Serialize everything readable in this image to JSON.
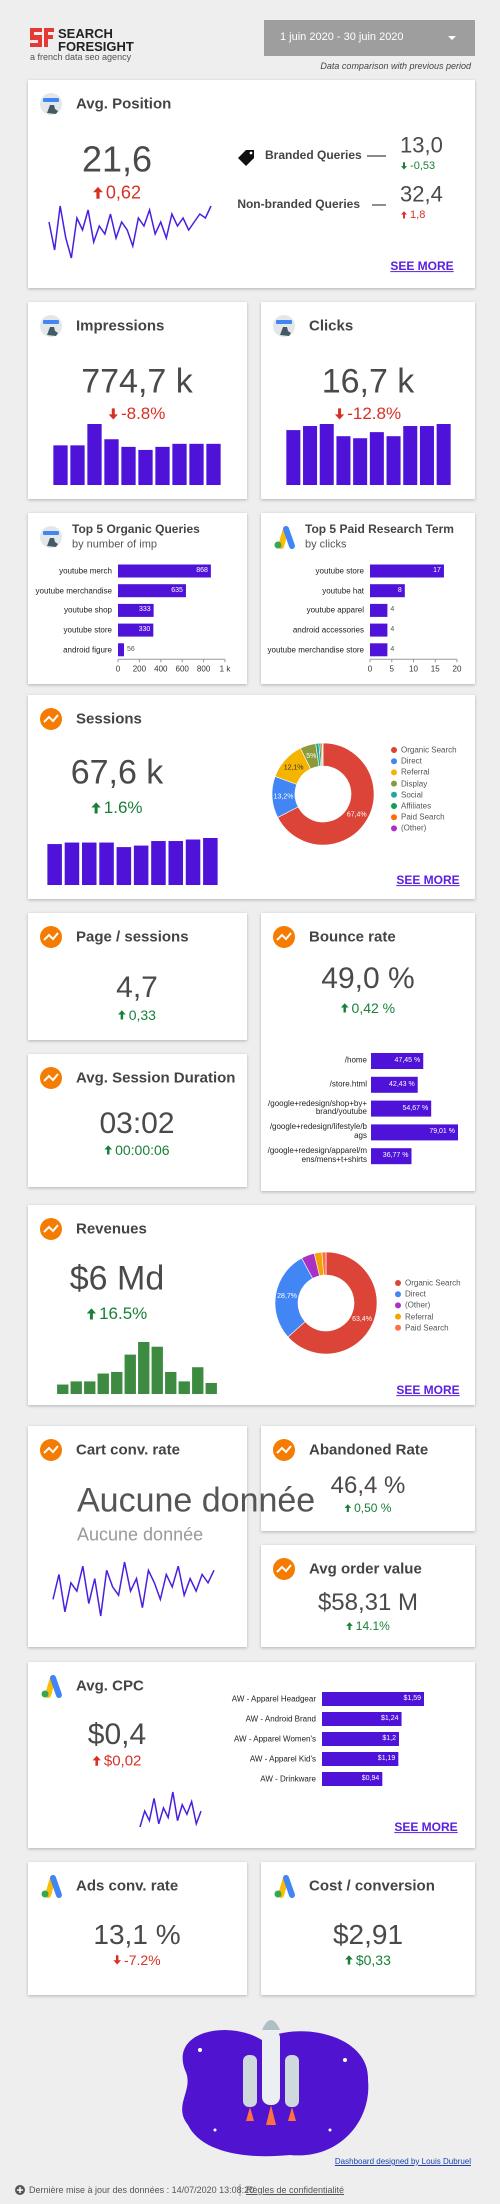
{
  "header": {
    "logo_line1": "SEARCH",
    "logo_line2": "FORESIGHT",
    "tagline": "a french data seo agency",
    "date_range": "1 juin 2020 - 30 juin 2020",
    "comparison_note": "Data comparison with previous period"
  },
  "avg_position": {
    "title": "Avg. Position",
    "value": "21,6",
    "delta": "0,62",
    "delta_direction": "up",
    "delta_color": "#d93025",
    "sparkline": [
      13,
      6,
      17,
      9,
      4,
      14,
      11,
      16,
      8,
      12,
      10,
      15,
      9,
      13,
      11,
      7,
      14,
      12,
      16,
      10,
      13,
      9,
      15,
      12,
      14,
      11,
      13,
      15,
      14,
      17
    ],
    "line_color": "#4a1ee0",
    "queries": [
      {
        "label": "Branded Queries",
        "value": "13,0",
        "delta": "-0,53",
        "delta_direction": "down",
        "delta_color": "#188038"
      },
      {
        "label": "Non-branded Queries",
        "value": "32,4",
        "delta": "1,8",
        "delta_direction": "up",
        "delta_color": "#d93025"
      }
    ],
    "link": "SEE MORE"
  },
  "impressions": {
    "title": "Impressions",
    "value": "774,7 k",
    "delta": "-8.8%",
    "delta_direction": "down",
    "delta_color": "#d93025",
    "bars": [
      26,
      26,
      40,
      30,
      25,
      23,
      25,
      27,
      27,
      27
    ],
    "bar_color": "#4e12d9"
  },
  "clicks": {
    "title": "Clicks",
    "value": "16,7 k",
    "delta": "-12.8%",
    "delta_direction": "down",
    "delta_color": "#d93025",
    "bars": [
      27,
      29,
      30,
      24,
      23,
      26,
      24,
      29,
      29,
      30
    ],
    "bar_color": "#4e12d9"
  },
  "top_organic_queries": {
    "title": "Top 5 Organic Queries",
    "subtitle": "by number of imp",
    "categories": [
      "youtube merch",
      "youtube merchandise",
      "youtube shop",
      "youtube store",
      "android figure"
    ],
    "values": [
      868,
      635,
      333,
      330,
      56
    ],
    "color": "#4e12d9",
    "xlim": [
      0,
      1000
    ],
    "xticks": [
      0,
      200,
      400,
      600,
      800,
      {
        "value": 1000,
        "label": "1 k"
      }
    ]
  },
  "top_paid_terms": {
    "title": "Top 5 Paid Research Term",
    "subtitle": "by clicks",
    "categories": [
      "youtube store",
      "youtube hat",
      "youtube apparel",
      "android accessories",
      "youtube merchandise store"
    ],
    "values": [
      17,
      8,
      4,
      4,
      4
    ],
    "color": "#4e12d9",
    "xlim": [
      0,
      20
    ],
    "xticks": [
      0,
      5,
      10,
      15,
      20
    ]
  },
  "sessions": {
    "title": "Sessions",
    "value": "67,6 k",
    "delta": "1.6%",
    "delta_direction": "up",
    "delta_color": "#188038",
    "bars": [
      27,
      28,
      28,
      28,
      25,
      26,
      29,
      29,
      30,
      31
    ],
    "bar_color": "#4e12d9",
    "donut": {
      "categories": [
        "Organic Search",
        "Direct",
        "Referral",
        "Display",
        "Social",
        "Affiliates",
        "Paid Search",
        "(Other)"
      ],
      "values": [
        67.4,
        13.2,
        12.1,
        5,
        1,
        0.6,
        0.5,
        0.2
      ],
      "value_labels": [
        "67,4%",
        "13,2%",
        "12,1%",
        "5%",
        null,
        null,
        null,
        null
      ],
      "colors": [
        "#db4437",
        "#4285f4",
        "#f4b400",
        "#8d9a3a",
        "#26a69a",
        "#0f9d58",
        "#ff6d00",
        "#ab30c4"
      ]
    },
    "link": "SEE MORE"
  },
  "page_sessions": {
    "title": "Page / sessions",
    "value": "4,7",
    "delta": "0,33",
    "delta_direction": "up",
    "delta_color": "#188038"
  },
  "avg_session_duration": {
    "title": "Avg. Session Duration",
    "value": "03:02",
    "delta": "00:00:06",
    "delta_direction": "up",
    "delta_color": "#188038"
  },
  "bounce_rate": {
    "title": "Bounce rate",
    "value": "49,0 %",
    "delta": "0,42 %",
    "delta_direction": "up",
    "delta_color": "#188038",
    "pages": {
      "categories": [
        "/home",
        "/store.html",
        "/google+redesign/shop+by+brand/youtube",
        "/google+redesign/lifestyle/bags",
        "/google+redesign/apparel/mens/mens+t+shirts"
      ],
      "values": [
        47.45,
        42.43,
        54.67,
        79.01,
        36.77
      ],
      "value_labels": [
        "47,45 %",
        "42,43 %",
        "54,67 %",
        "79,01 %",
        "36,77 %"
      ],
      "color": "#4e12d9"
    }
  },
  "revenues": {
    "title": "Revenues",
    "value": "$6 Md",
    "delta": "16.5%",
    "delta_direction": "up",
    "delta_color": "#188038",
    "bars": [
      6,
      8,
      8,
      13,
      14,
      25,
      33,
      30,
      14,
      8,
      17,
      7
    ],
    "bar_color": "#3d8b40",
    "donut": {
      "categories": [
        "Organic Search",
        "Direct",
        "(Other)",
        "Referral",
        "Paid Search"
      ],
      "values": [
        63.4,
        28.7,
        4.2,
        2.4,
        1.3
      ],
      "value_labels": [
        "63,4%",
        "28,7%",
        null,
        null,
        null
      ],
      "colors": [
        "#db4437",
        "#4285f4",
        "#ab30c4",
        "#f4a300",
        "#ff7043"
      ]
    },
    "link": "SEE MORE"
  },
  "cart_conversion_rate": {
    "title": "Cart conv. rate",
    "value": "Aucune donnée",
    "value_note": "Aucune donnée",
    "sparkline": [
      8,
      14,
      5,
      12,
      10,
      16,
      7,
      13,
      4,
      15,
      11,
      9,
      17,
      10,
      13,
      6,
      15,
      12,
      8,
      14,
      11,
      16,
      9,
      13,
      10,
      14,
      12,
      15
    ],
    "line_color": "#4a1ee0"
  },
  "abandoned_rate": {
    "title": "Abandoned Rate",
    "value": "46,4 %",
    "delta": "0,50 %",
    "delta_direction": "up",
    "delta_color": "#188038"
  },
  "avg_order_value": {
    "title": "Avg order value",
    "value": "$58,31 M",
    "delta": "14.1%",
    "delta_direction": "up",
    "delta_color": "#188038"
  },
  "avg_cpc": {
    "title": "Avg. CPC",
    "value": "$0,4",
    "delta": "$0,02",
    "delta_direction": "up",
    "delta_color": "#d93025",
    "sparkline": [
      3,
      8,
      5,
      12,
      4,
      9,
      6,
      14,
      5,
      10,
      7,
      11,
      4,
      8
    ],
    "line_color": "#4a1ee0",
    "campaigns": {
      "categories": [
        "AW - Apparel Headgear",
        "AW - Android Brand",
        "AW - Apparel Women's",
        "AW - Apparel Kid's",
        "AW - Drinkware"
      ],
      "values": [
        1.59,
        1.24,
        1.2,
        1.19,
        0.94
      ],
      "value_labels": [
        "$1,59",
        "$1,24",
        "$1,2",
        "$1,19",
        "$0,94"
      ],
      "color": "#4e12d9"
    },
    "link": "SEE MORE"
  },
  "ads_conversion_rate": {
    "title": "Ads conv. rate",
    "value": "13,1 %",
    "delta": "-7.2%",
    "delta_direction": "down",
    "delta_color": "#d93025"
  },
  "cost_per_conversion": {
    "title": "Cost / conversion",
    "value": "$2,91",
    "delta": "$0,33",
    "delta_direction": "up",
    "delta_color": "#188038"
  },
  "credit": "Dashboard designed by Louis Dubruel",
  "footer": {
    "last_update": "Dernière mise à jour des données : 14/07/2020 13:08:20",
    "privacy": "Règles de confidentialité"
  }
}
